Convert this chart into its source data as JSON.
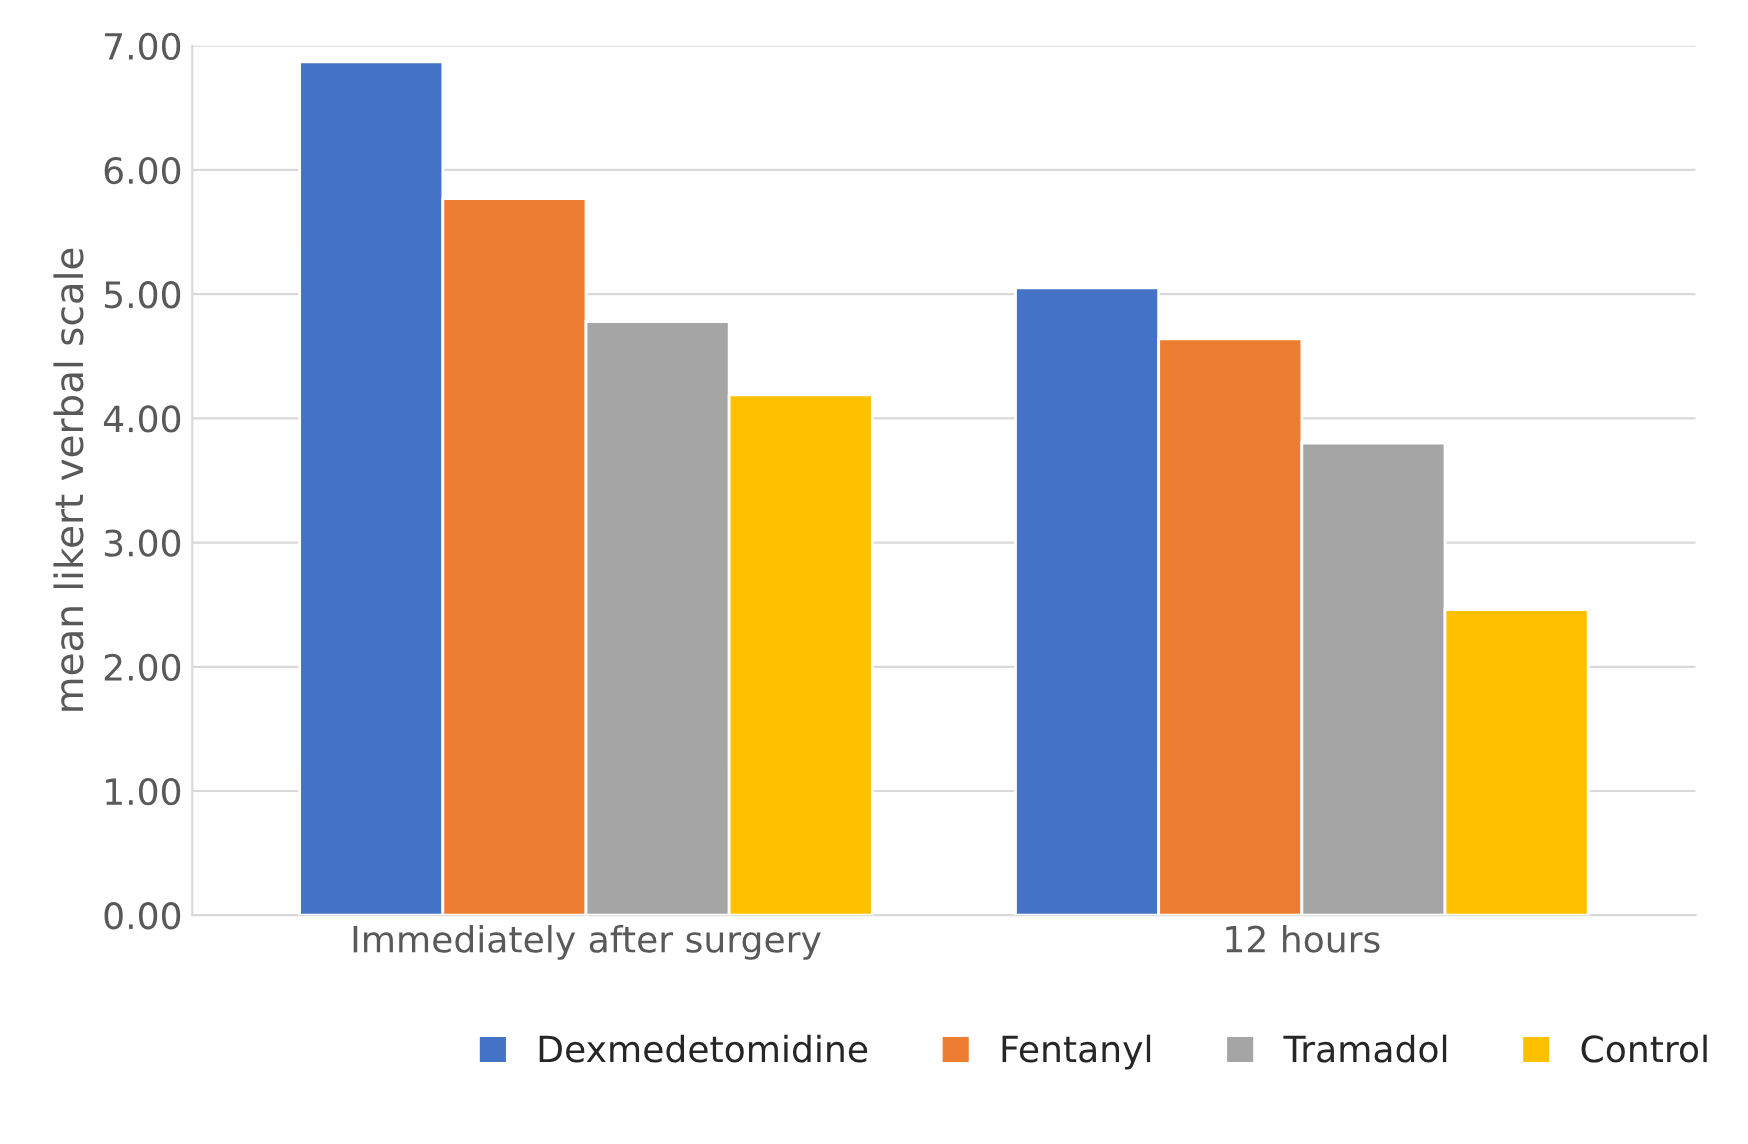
{
  "chart_data": {
    "type": "bar",
    "ylabel": "mean likert verbal scale",
    "categories": [
      "Immediately after surgery",
      "12 hours"
    ],
    "series": [
      {
        "name": "Dexmedetomidine",
        "color": "#4472c4",
        "values": [
          6.87,
          5.05
        ]
      },
      {
        "name": "Fentanyl",
        "color": "#ed7d31",
        "values": [
          5.77,
          4.64
        ]
      },
      {
        "name": "Tramadol",
        "color": "#a5a5a5",
        "values": [
          4.78,
          3.8
        ]
      },
      {
        "name": "Control",
        "color": "#ffc000",
        "values": [
          4.19,
          2.46
        ]
      }
    ],
    "ylim": [
      0,
      7
    ],
    "yticks": [
      {
        "value": 0,
        "label": "0.00"
      },
      {
        "value": 1,
        "label": "1.00"
      },
      {
        "value": 2,
        "label": "2.00"
      },
      {
        "value": 3,
        "label": "3.00"
      },
      {
        "value": 4,
        "label": "4.00"
      },
      {
        "value": 5,
        "label": "5.00"
      },
      {
        "value": 6,
        "label": "6.00"
      },
      {
        "value": 7,
        "label": "7.00"
      }
    ],
    "grid": "y",
    "legend": "bottom"
  }
}
